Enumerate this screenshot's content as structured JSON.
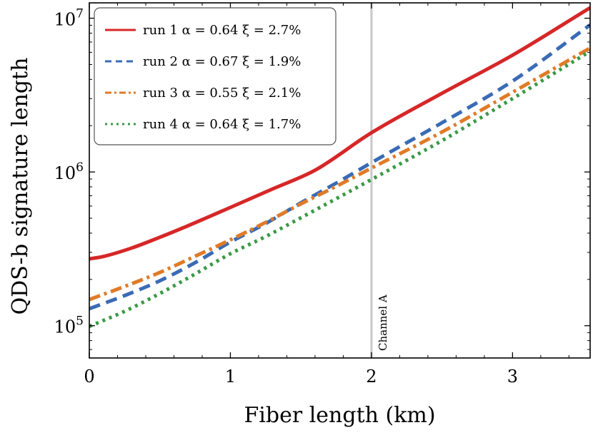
{
  "chart_data": {
    "type": "line",
    "xlabel": "Fiber length (km)",
    "ylabel": "QDS-b signature length",
    "xlim": [
      0,
      3.55
    ],
    "ylim_log10": [
      4.79,
      7.1
    ],
    "yscale": "log",
    "grid": false,
    "legend_position": "top-left",
    "x_ticks": [
      {
        "value": 0,
        "label": "0"
      },
      {
        "value": 1,
        "label": "1"
      },
      {
        "value": 2,
        "label": "2"
      },
      {
        "value": 3,
        "label": "3"
      }
    ],
    "y_ticks": [
      {
        "log10": 5,
        "base": "10",
        "exp": "5"
      },
      {
        "log10": 6,
        "base": "10",
        "exp": "6"
      },
      {
        "log10": 7,
        "base": "10",
        "exp": "7"
      }
    ],
    "annotation": {
      "x": 2.0,
      "label": "Channel A",
      "color": "#c8c8c8"
    },
    "series": [
      {
        "name": "run 1 α = 0.64 ξ = 2.7%",
        "color": "#d62728",
        "dash": "solid",
        "x": [
          0,
          0.1,
          0.3,
          0.5,
          0.7,
          1.0,
          1.3,
          1.6,
          2.0,
          2.5,
          3.0,
          3.55
        ],
        "y": [
          272000,
          282000,
          320000,
          376000,
          447000,
          588000,
          776000,
          1026000,
          1800000,
          3250000,
          5750000,
          11700000
        ]
      },
      {
        "name": "run 2 α = 0.67 ξ = 1.9%",
        "color": "#3a6bb5",
        "dash": "dashed",
        "x": [
          0,
          0.25,
          0.5,
          0.75,
          1.0,
          1.25,
          1.5,
          1.75,
          2.0,
          2.5,
          3.0,
          3.55
        ],
        "y": [
          129000,
          157000,
          196000,
          257000,
          350000,
          462000,
          630000,
          846000,
          1150000,
          2090000,
          3900000,
          9050000
        ]
      },
      {
        "name": "run 3 α = 0.55 ξ = 2.1%",
        "color": "#e07b28",
        "dash": "dashdot",
        "x": [
          0,
          0.25,
          0.5,
          0.75,
          1.0,
          1.25,
          1.5,
          1.75,
          2.0,
          2.5,
          3.0,
          3.55
        ],
        "y": [
          148000,
          180000,
          222000,
          283000,
          362000,
          470000,
          620000,
          806000,
          1060000,
          1820000,
          3300000,
          6400000
        ]
      },
      {
        "name": "run 4 α = 0.64 ξ = 1.7%",
        "color": "#3a9a45",
        "dash": "dotted",
        "x": [
          0,
          0.25,
          0.5,
          0.75,
          1.0,
          1.25,
          1.5,
          1.75,
          2.0,
          2.5,
          3.0,
          3.55
        ],
        "y": [
          99000,
          124000,
          162000,
          217000,
          294000,
          380000,
          504000,
          670000,
          893000,
          1600000,
          3000000,
          6100000
        ]
      }
    ]
  }
}
